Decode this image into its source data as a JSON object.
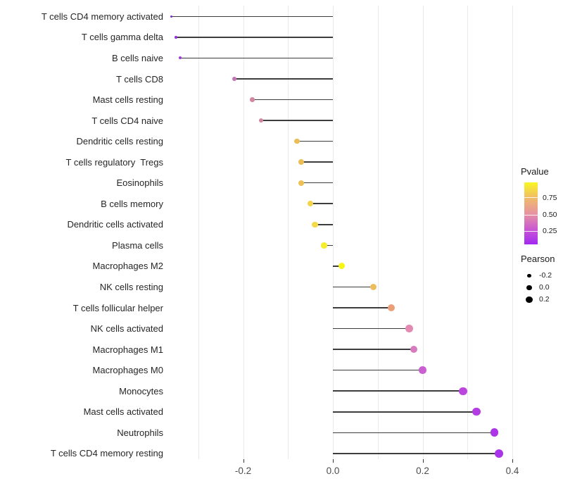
{
  "chart_data": {
    "type": "scatter",
    "subtype": "lollipop",
    "title": "",
    "xlabel": "",
    "ylabel": "",
    "x_axis": {
      "tick_labels": [
        "-0.2",
        "0.0",
        "0.2",
        "0.4"
      ],
      "tick_values": [
        -0.2,
        0.0,
        0.2,
        0.4
      ],
      "gridline_values": [
        -0.3,
        -0.2,
        -0.1,
        0.0,
        0.1,
        0.2,
        0.3,
        0.4
      ],
      "range": [
        -0.3655,
        0.422
      ]
    },
    "baseline_value": 0.0,
    "stem_color": "#3d3d3d",
    "grid_color": "#ebebeb",
    "points": [
      {
        "label": "T cells CD4 memory activated",
        "pearson": -0.36,
        "color": "#7e28c9"
      },
      {
        "label": "T cells gamma delta",
        "pearson": -0.35,
        "color": "#9333d3"
      },
      {
        "label": "B cells naive",
        "pearson": -0.34,
        "color": "#a23ad2"
      },
      {
        "label": "T cells CD8",
        "pearson": -0.22,
        "color": "#c572b7"
      },
      {
        "label": "Mast cells resting",
        "pearson": -0.18,
        "color": "#d2869f"
      },
      {
        "label": "T cells CD4 naive",
        "pearson": -0.16,
        "color": "#d2869d"
      },
      {
        "label": "Dendritic cells resting",
        "pearson": -0.08,
        "color": "#ecbc55"
      },
      {
        "label": "T cells regulatory  Tregs",
        "pearson": -0.07,
        "color": "#ecbc55"
      },
      {
        "label": "Eosinophils",
        "pearson": -0.07,
        "color": "#ecc156"
      },
      {
        "label": "B cells memory",
        "pearson": -0.05,
        "color": "#f3d44b"
      },
      {
        "label": "Dendritic cells activated",
        "pearson": -0.04,
        "color": "#f4da46"
      },
      {
        "label": "Plasma cells",
        "pearson": -0.02,
        "color": "#f6ed2d"
      },
      {
        "label": "Macrophages M2",
        "pearson": 0.02,
        "color": "#f7f513"
      },
      {
        "label": "NK cells resting",
        "pearson": 0.09,
        "color": "#edbd5c"
      },
      {
        "label": "T cells follicular helper",
        "pearson": 0.13,
        "color": "#eb9f79"
      },
      {
        "label": "NK cells activated",
        "pearson": 0.17,
        "color": "#e28ab2"
      },
      {
        "label": "Macrophages M1",
        "pearson": 0.18,
        "color": "#d77bc0"
      },
      {
        "label": "Macrophages M0",
        "pearson": 0.2,
        "color": "#ca5fd1"
      },
      {
        "label": "Monocytes",
        "pearson": 0.29,
        "color": "#bb45dd"
      },
      {
        "label": "Mast cells activated",
        "pearson": 0.32,
        "color": "#b33de3"
      },
      {
        "label": "Neutrophils",
        "pearson": 0.36,
        "color": "#ac36e7"
      },
      {
        "label": "T cells CD4 memory resting",
        "pearson": 0.37,
        "color": "#a934e9"
      }
    ],
    "legend_pvalue": {
      "title": "Pvalue",
      "tick_labels": [
        "0.75",
        "0.50",
        "0.25"
      ],
      "tick_positions_pct_from_bottom": [
        76,
        48,
        22
      ],
      "gradient_stops": [
        "#a229f0",
        "#c653d6",
        "#e590a5",
        "#f0bd67",
        "#f9f621"
      ]
    },
    "legend_pearson": {
      "title": "Pearson",
      "items": [
        {
          "label": "-0.2",
          "diameter": 5.5
        },
        {
          "label": "0.0",
          "diameter": 7.5
        },
        {
          "label": "0.2",
          "diameter": 9.5
        }
      ]
    }
  }
}
